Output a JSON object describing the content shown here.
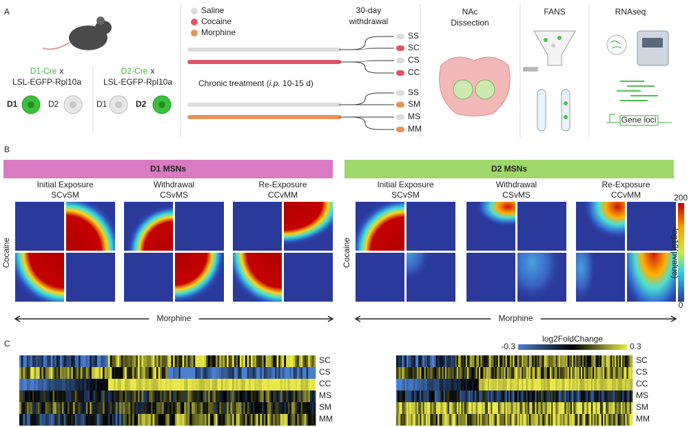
{
  "panels": {
    "a": "A",
    "b": "B",
    "c": "C"
  },
  "mice": [
    {
      "cre": "D1-Cre",
      "x": "x",
      "line": "LSL-EGFP-Rpl10a",
      "left": "D1",
      "right": "D2"
    },
    {
      "cre": "D2-Cre",
      "x": "x",
      "line": "LSL-EGFP-Rpl10a",
      "left": "D1",
      "right": "D2"
    }
  ],
  "legend": [
    "Saline",
    "Cocaine",
    "Morphine"
  ],
  "withdrawal": [
    "30-day",
    "withdrawal"
  ],
  "treatment": {
    "prefix": "Chronic treatment (",
    "route": "i.p.",
    "suffix": " 10-15 d)"
  },
  "groups": [
    "SS",
    "SC",
    "CS",
    "CC",
    "SS",
    "SM",
    "MS",
    "MM"
  ],
  "steps": [
    [
      "NAc",
      "Dissection"
    ],
    [
      "FANS"
    ],
    [
      "RNAseq"
    ]
  ],
  "gene": "Gene loci",
  "rrho": {
    "cells": [
      {
        "title": "D1 MSNs",
        "comparisons": [
          {
            "name": "Initial Exposure",
            "code": "SCvSM"
          },
          {
            "name": "Withdrawal",
            "code": "CSvMS"
          },
          {
            "name": "Re-Exposure",
            "code": "CCvMM"
          }
        ]
      },
      {
        "title": "D2 MSNs",
        "comparisons": [
          {
            "name": "Initial Exposure",
            "code": "SCvSM"
          },
          {
            "name": "Withdrawal",
            "code": "CSvMS"
          },
          {
            "name": "Re-Exposure",
            "code": "CCvMM"
          }
        ]
      }
    ],
    "y_label": "Cocaine",
    "x_label": "Morphine",
    "scale": {
      "label": "-log10(pvalue)",
      "max": 200,
      "min": 0
    }
  },
  "heatmap": {
    "rows": [
      "SC",
      "CS",
      "CC",
      "MS",
      "SM",
      "MM"
    ],
    "scale": {
      "label": "log2FoldChange",
      "min": -0.3,
      "max": 0.3
    }
  }
}
